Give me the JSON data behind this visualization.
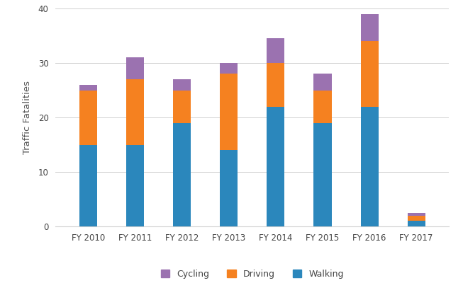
{
  "categories": [
    "FY 2010",
    "FY 2011",
    "FY 2012",
    "FY 2013",
    "FY 2014",
    "FY 2015",
    "FY 2016",
    "FY 2017"
  ],
  "walking": [
    15,
    15,
    19,
    14,
    22,
    19,
    22,
    1
  ],
  "driving": [
    10,
    12,
    6,
    14,
    8,
    6,
    12,
    1
  ],
  "cycling": [
    1,
    4,
    2,
    2,
    4.5,
    3,
    5,
    0.5
  ],
  "walking_color": "#2b87bc",
  "driving_color": "#f58120",
  "cycling_color": "#9b72b0",
  "ylabel": "Traffic Fatalities",
  "ylim": [
    0,
    40
  ],
  "yticks": [
    0,
    10,
    20,
    30,
    40
  ],
  "background_color": "#ffffff",
  "grid_color": "#d0d0d0",
  "bar_width": 0.38,
  "legend_labels": [
    "Cycling",
    "Driving",
    "Walking"
  ]
}
